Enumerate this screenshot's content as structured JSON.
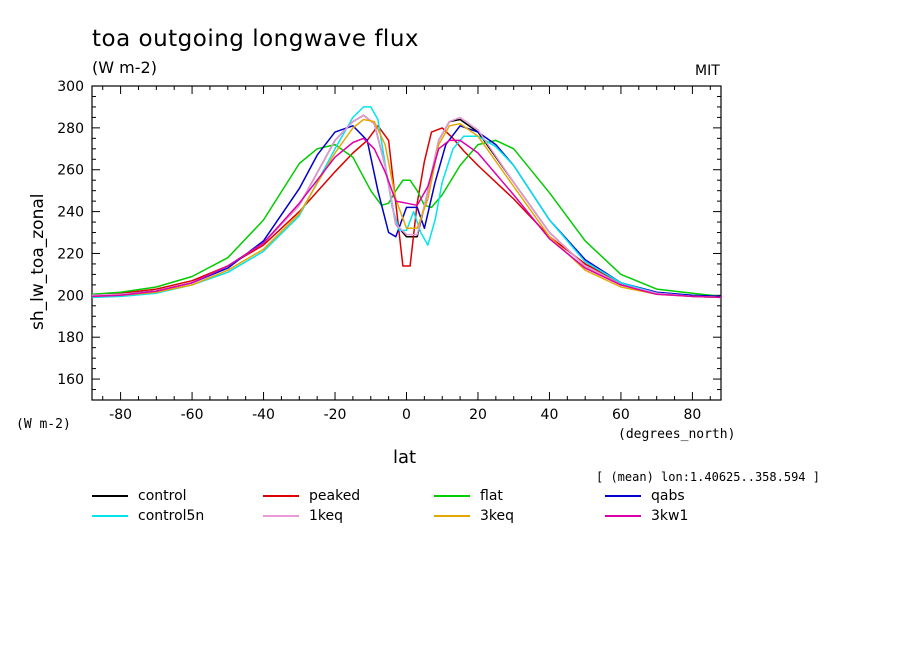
{
  "chart_data": {
    "type": "line",
    "title": "toa outgoing longwave flux",
    "units": "(W m-2)",
    "source": "MIT",
    "ylabel": "sh_lw_toa_zonal",
    "yunits": "(W m-2)",
    "xlabel": "lat",
    "xunits": "(degrees_north)",
    "note": "[ (mean) lon:1.40625..358.594 ]",
    "xlim": [
      -88,
      88
    ],
    "ylim": [
      150,
      300
    ],
    "xticks": [
      -80,
      -60,
      -40,
      -20,
      0,
      20,
      40,
      60,
      80
    ],
    "yticks": [
      160,
      180,
      200,
      220,
      240,
      260,
      280,
      300
    ],
    "grid": false,
    "legend_position": "bottom",
    "series": [
      {
        "name": "control",
        "color": "#000000",
        "x": [
          -88,
          -80,
          -70,
          -60,
          -50,
          -40,
          -30,
          -20,
          -15,
          -12,
          -9,
          -6,
          -3,
          0,
          3,
          6,
          9,
          12,
          15,
          20,
          30,
          40,
          50,
          60,
          70,
          80,
          88
        ],
        "y": [
          200,
          200.5,
          202,
          206,
          214,
          225,
          243,
          274,
          283,
          286,
          282,
          262,
          234,
          228,
          228,
          250,
          274,
          283,
          284,
          278,
          254,
          230,
          214,
          205,
          201,
          199.5,
          199
        ]
      },
      {
        "name": "peaked",
        "color": "#dd0000",
        "x": [
          -88,
          -80,
          -70,
          -60,
          -50,
          -40,
          -30,
          -20,
          -15,
          -11,
          -8,
          -5,
          -3,
          -1,
          1,
          3,
          5,
          7,
          10,
          13,
          16,
          20,
          30,
          40,
          50,
          60,
          70,
          80,
          88
        ],
        "y": [
          200,
          201,
          203,
          207,
          214,
          224,
          240,
          259,
          268,
          274,
          281,
          274,
          244,
          214,
          214,
          244,
          264,
          278,
          280,
          275,
          269,
          262,
          246,
          228,
          215,
          206,
          201,
          199.5,
          199
        ]
      },
      {
        "name": "flat",
        "color": "#00cc00",
        "x": [
          -88,
          -80,
          -70,
          -60,
          -50,
          -40,
          -30,
          -25,
          -20,
          -15,
          -10,
          -7,
          -5,
          -3,
          -1,
          1,
          3,
          5,
          7,
          10,
          15,
          20,
          25,
          30,
          40,
          50,
          60,
          70,
          80,
          88
        ],
        "y": [
          200.5,
          201.5,
          204,
          209,
          218,
          236,
          263,
          270,
          272,
          266,
          250,
          243,
          244,
          250,
          255,
          255,
          250,
          243,
          242,
          248,
          262,
          272,
          274,
          270,
          249,
          226,
          210,
          203,
          201,
          199.5
        ]
      },
      {
        "name": "qabs",
        "color": "#0000cc",
        "x": [
          -88,
          -80,
          -70,
          -60,
          -50,
          -40,
          -30,
          -25,
          -20,
          -15,
          -11,
          -8,
          -5,
          -3,
          0,
          3,
          5,
          8,
          11,
          15,
          20,
          25,
          30,
          40,
          50,
          60,
          70,
          80,
          88
        ],
        "y": [
          200,
          200.5,
          202,
          206,
          213,
          226,
          251,
          267,
          278,
          281,
          274,
          250,
          230,
          228,
          242,
          242,
          232,
          254,
          272,
          281,
          278,
          272,
          262,
          236,
          217,
          206,
          201.5,
          200,
          199.5
        ]
      },
      {
        "name": "control5n",
        "color": "#00e5ee",
        "x": [
          -88,
          -80,
          -70,
          -60,
          -50,
          -40,
          -30,
          -20,
          -15,
          -12,
          -10,
          -8,
          -6,
          -4,
          -2,
          0,
          2,
          4,
          6,
          8,
          10,
          13,
          16,
          20,
          25,
          30,
          40,
          50,
          60,
          70,
          80,
          88
        ],
        "y": [
          199,
          199.5,
          201,
          205,
          211,
          221,
          238,
          270,
          285,
          290,
          290,
          284,
          263,
          242,
          231,
          231,
          240,
          230,
          224,
          236,
          254,
          270,
          276,
          276,
          271,
          262,
          236,
          216,
          206,
          201,
          199.5,
          199
        ]
      },
      {
        "name": "1keq",
        "color": "#e69ad8",
        "x": [
          -88,
          -80,
          -70,
          -60,
          -50,
          -40,
          -30,
          -20,
          -15,
          -12,
          -9,
          -6,
          -3,
          0,
          3,
          6,
          9,
          12,
          15,
          20,
          30,
          40,
          50,
          60,
          70,
          80,
          88
        ],
        "y": [
          200,
          200.5,
          202,
          206,
          214,
          225,
          243,
          274,
          283,
          286,
          282,
          262,
          234,
          229,
          229,
          250,
          274,
          283,
          285,
          279,
          254,
          230,
          214,
          205,
          201,
          199.5,
          199
        ]
      },
      {
        "name": "3keq",
        "color": "#e6a800",
        "x": [
          -88,
          -80,
          -70,
          -60,
          -50,
          -40,
          -30,
          -20,
          -15,
          -12,
          -9,
          -6,
          -3,
          0,
          3,
          6,
          9,
          12,
          15,
          20,
          30,
          40,
          50,
          60,
          70,
          80,
          88
        ],
        "y": [
          199.5,
          200,
          201.5,
          205,
          212,
          222,
          239,
          268,
          280,
          284,
          283,
          272,
          246,
          232,
          232,
          246,
          272,
          281,
          282,
          276,
          252,
          228,
          212,
          204,
          200.5,
          199.5,
          199
        ]
      },
      {
        "name": "3kw1",
        "color": "#dd00aa",
        "x": [
          -88,
          -80,
          -70,
          -60,
          -50,
          -40,
          -30,
          -20,
          -15,
          -12,
          -9,
          -6,
          -3,
          0,
          3,
          6,
          9,
          12,
          15,
          20,
          30,
          40,
          50,
          60,
          70,
          80,
          88
        ],
        "y": [
          199.5,
          200,
          202,
          206,
          214,
          225,
          244,
          266,
          273,
          275,
          270,
          259,
          245,
          244,
          243,
          252,
          270,
          274,
          274,
          268,
          248,
          227,
          213,
          205,
          200.5,
          199.5,
          199
        ]
      }
    ]
  }
}
